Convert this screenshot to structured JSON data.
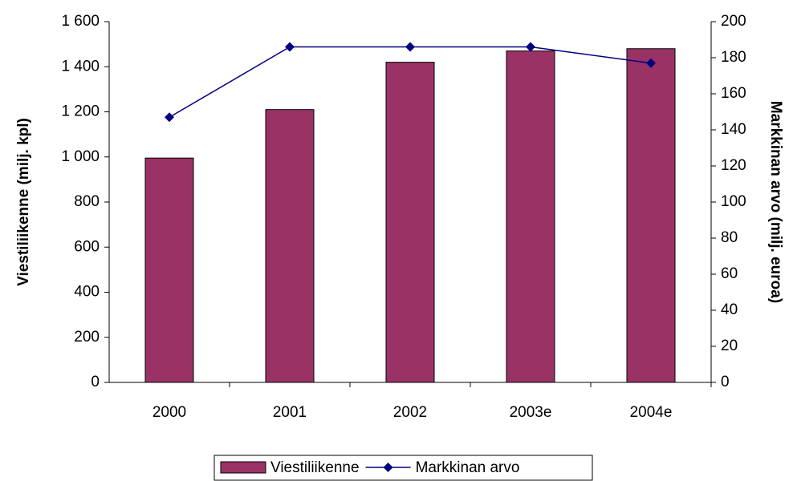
{
  "chart_data": {
    "type": "bar_line",
    "categories": [
      "2000",
      "2001",
      "2002",
      "2003e",
      "2004e"
    ],
    "series": [
      {
        "name": "Viestiliikenne",
        "color": "#993366",
        "type": "bar",
        "values": [
          995,
          1210,
          1420,
          1470,
          1480
        ]
      },
      {
        "name": "Markkinan arvo",
        "color": "#000080",
        "type": "line",
        "axis": "y2",
        "values": [
          147,
          186,
          186,
          186,
          177
        ]
      }
    ],
    "ylabel": "Viestiliikenne (milj. kpl)",
    "y2label": "Markkinan arvo (milj. euroa)",
    "ylim": [
      0,
      1600
    ],
    "yticks": [
      0,
      200,
      400,
      600,
      800,
      {
        "value": 1000,
        "label": "1 000"
      },
      {
        "value": 1200,
        "label": "1 200"
      },
      {
        "value": 1400,
        "label": "1 400"
      },
      {
        "value": 1600,
        "label": "1 600"
      }
    ],
    "y2lim": [
      0,
      200
    ],
    "y2ticks": [
      0,
      20,
      40,
      60,
      80,
      100,
      120,
      140,
      160,
      180,
      200
    ],
    "grid": false
  }
}
